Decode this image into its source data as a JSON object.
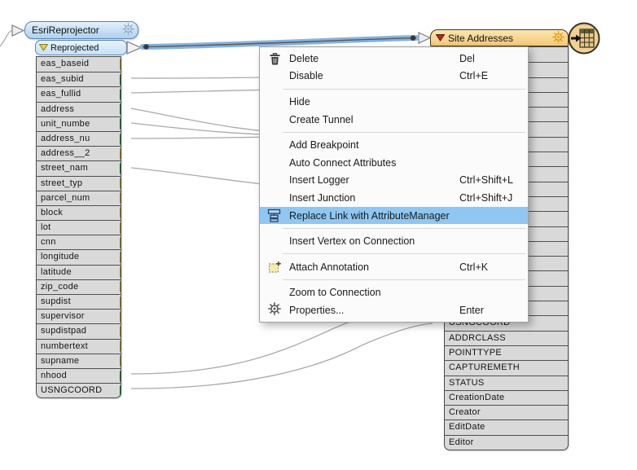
{
  "left_node": {
    "title": "EsriReprojector",
    "port_label": "Reprojected",
    "attributes": [
      {
        "name": "eas_baseid",
        "port": "yellow"
      },
      {
        "name": "eas_subid",
        "port": "green"
      },
      {
        "name": "eas_fullid",
        "port": "green"
      },
      {
        "name": "address",
        "port": "green"
      },
      {
        "name": "unit_numbe",
        "port": "green"
      },
      {
        "name": "address_nu",
        "port": "green"
      },
      {
        "name": "address__2",
        "port": "yellow"
      },
      {
        "name": "street_nam",
        "port": "green"
      },
      {
        "name": "street_typ",
        "port": "yellow"
      },
      {
        "name": "parcel_num",
        "port": "yellow"
      },
      {
        "name": "block",
        "port": "yellow"
      },
      {
        "name": "lot",
        "port": "yellow"
      },
      {
        "name": "cnn",
        "port": "yellow"
      },
      {
        "name": "longitude",
        "port": "yellow"
      },
      {
        "name": "latitude",
        "port": "yellow"
      },
      {
        "name": "zip_code",
        "port": "yellow"
      },
      {
        "name": "supdist",
        "port": "yellow"
      },
      {
        "name": "supervisor",
        "port": "yellow"
      },
      {
        "name": "supdistpad",
        "port": "yellow"
      },
      {
        "name": "numbertext",
        "port": "yellow"
      },
      {
        "name": "supname",
        "port": "yellow"
      },
      {
        "name": "nhood",
        "port": "green"
      },
      {
        "name": "USNGCOORD",
        "port": "green"
      }
    ]
  },
  "right_node": {
    "title": "Site Addresses",
    "hidden_row_count": 18,
    "attributes": [
      {
        "name": "USNGCOORD",
        "port": "green"
      },
      {
        "name": "ADDRCLASS",
        "port": "red"
      },
      {
        "name": "POINTTYPE",
        "port": "red"
      },
      {
        "name": "CAPTUREMETH",
        "port": "red"
      },
      {
        "name": "STATUS",
        "port": "red"
      },
      {
        "name": "CreationDate",
        "port": "red"
      },
      {
        "name": "Creator",
        "port": "red"
      },
      {
        "name": "EditDate",
        "port": "red"
      },
      {
        "name": "Editor",
        "port": "red"
      }
    ]
  },
  "context_menu": {
    "items": [
      {
        "label": "Delete",
        "shortcut": "Del",
        "icon": "trash"
      },
      {
        "label": "Disable",
        "shortcut": "Ctrl+E"
      },
      {
        "type": "separator"
      },
      {
        "label": "Hide"
      },
      {
        "label": "Create Tunnel"
      },
      {
        "type": "separator"
      },
      {
        "label": "Add Breakpoint"
      },
      {
        "label": "Auto Connect Attributes"
      },
      {
        "label": "Insert Logger",
        "shortcut": "Ctrl+Shift+L"
      },
      {
        "label": "Insert Junction",
        "shortcut": "Ctrl+Shift+J"
      },
      {
        "label": "Replace Link with AttributeManager",
        "icon": "attribute-manager",
        "highlighted": true
      },
      {
        "type": "separator"
      },
      {
        "label": "Insert Vertex on Connection"
      },
      {
        "type": "separator"
      },
      {
        "label": "Attach Annotation",
        "shortcut": "Ctrl+K",
        "icon": "annotation"
      },
      {
        "type": "separator"
      },
      {
        "label": "Zoom to Connection"
      },
      {
        "label": "Properties...",
        "shortcut": "Enter",
        "icon": "gear"
      }
    ],
    "highlight_color": "#8fc7f2"
  },
  "colors": {
    "left_header_fill": "#aed0ee",
    "left_header_border": "#5a85b5",
    "right_header_fill": "#f3c979",
    "right_header_border": "#4a3a18",
    "row_fill": "#d9d9d9",
    "row_border": "#4a4a4a",
    "yellow_port": "#e6cf45",
    "green_port": "#2da12d",
    "red_port": "#b5291e",
    "selected_connection": "#86b3de",
    "wire_gray": "#aaaaaa"
  }
}
